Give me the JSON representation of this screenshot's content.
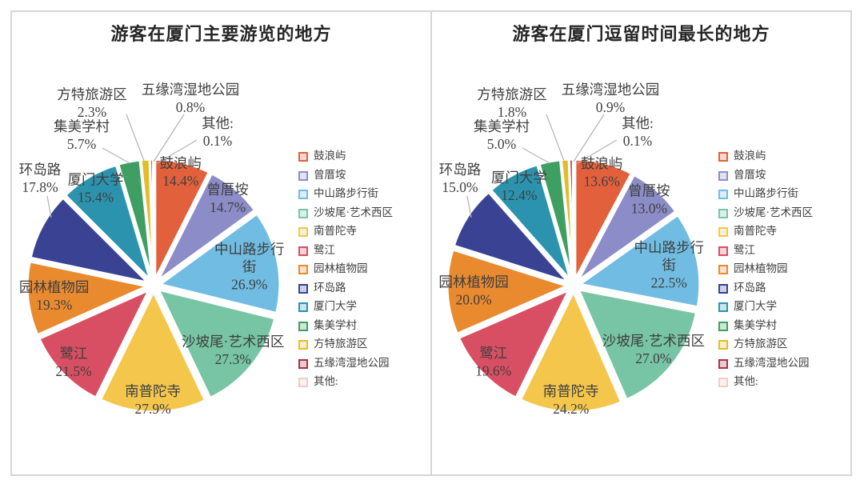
{
  "page": {
    "background": "#ffffff",
    "panel_border_color": "#d6d6d6",
    "title_color": "#262626",
    "label_color": "#3f3f3f",
    "leader_line_color": "#b3b3b3"
  },
  "chart_data": [
    {
      "type": "pie",
      "title": "游客在厦门主要游览的地方",
      "categories": [
        "鼓浪屿",
        "曾厝垵",
        "中山路步行街",
        "沙坡尾·艺术西区",
        "南普陀寺",
        "鹭江",
        "园林植物园",
        "环岛路",
        "厦门大学",
        "集美学村",
        "方特旅游区",
        "五缘湾湿地公园",
        "其他:"
      ],
      "values": [
        14.4,
        14.7,
        26.9,
        27.3,
        27.9,
        21.5,
        19.3,
        17.8,
        15.4,
        5.7,
        2.3,
        0.8,
        0.1
      ],
      "value_labels": [
        "14.4%",
        "14.7%",
        "26.9%",
        "27.3%",
        "27.9%",
        "21.5%",
        "19.3%",
        "17.8%",
        "15.4%",
        "5.7%",
        "2.3%",
        "0.8%",
        "0.1%"
      ],
      "colors": [
        "#E2613C",
        "#8C8CC8",
        "#70BCE2",
        "#77C5A4",
        "#F4C64C",
        "#D84F63",
        "#E98A2F",
        "#3A4293",
        "#2C93AF",
        "#3F9F63",
        "#E3BC2D",
        "#A63246",
        "#F1CCC2"
      ],
      "style": "exploded, clockwise from top, multi-select percentages (sum > 100), slice angle proportional to value",
      "legend_position": "right"
    },
    {
      "type": "pie",
      "title": "游客在厦门逗留时间最长的地方",
      "categories": [
        "鼓浪屿",
        "曾厝垵",
        "中山路步行街",
        "沙坡尾·艺术西区",
        "南普陀寺",
        "鹭江",
        "园林植物园",
        "环岛路",
        "厦门大学",
        "集美学村",
        "方特旅游区",
        "五缘湾湿地公园",
        "其他:"
      ],
      "values": [
        13.6,
        13.0,
        22.5,
        27.0,
        24.2,
        19.6,
        20.0,
        15.0,
        12.4,
        5.0,
        1.8,
        0.9,
        0.1
      ],
      "value_labels": [
        "13.6%",
        "13.0%",
        "22.5%",
        "27.0%",
        "24.2%",
        "19.6%",
        "20.0%",
        "15.0%",
        "12.4%",
        "5.0%",
        "1.8%",
        "0.9%",
        "0.1%"
      ],
      "colors": [
        "#E2613C",
        "#8C8CC8",
        "#70BCE2",
        "#77C5A4",
        "#F4C64C",
        "#D84F63",
        "#E98A2F",
        "#3A4293",
        "#2C93AF",
        "#3F9F63",
        "#E3BC2D",
        "#A63246",
        "#F1CCC2"
      ],
      "style": "exploded, clockwise from top, multi-select percentages (sum > 100), slice angle proportional to value",
      "legend_position": "right"
    }
  ]
}
